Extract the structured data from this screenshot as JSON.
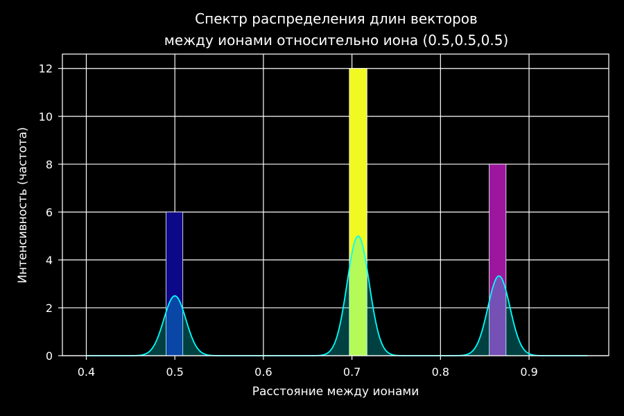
{
  "chart_data": {
    "type": "bar",
    "title_lines": [
      "Спектр распределения длин векторов",
      "между ионами относительно иона (0.5,0.5,0.5)"
    ],
    "xlabel": "Расстояние между ионами",
    "ylabel": "Интенсивность (частота)",
    "xlim": [
      0.373,
      0.99
    ],
    "ylim": [
      0,
      12.6
    ],
    "x_ticks": [
      0.4,
      0.5,
      0.6,
      0.7,
      0.8,
      0.9
    ],
    "y_ticks": [
      0,
      2,
      4,
      6,
      8,
      10,
      12
    ],
    "grid": true,
    "bars": [
      {
        "x_start": 0.49,
        "x_end": 0.509,
        "value": 6,
        "color": "#0d0887"
      },
      {
        "x_start": 0.697,
        "x_end": 0.717,
        "value": 12,
        "color": "#f0f921"
      },
      {
        "x_start": 0.855,
        "x_end": 0.874,
        "value": 8,
        "color": "#9c179e"
      }
    ],
    "kde": {
      "color": "#00ffff",
      "fill_color": "#00ffff",
      "x_range": [
        0.4,
        0.966
      ],
      "peaks": [
        {
          "center": 0.5,
          "height": 2.5,
          "sigma": 0.0125
        },
        {
          "center": 0.707,
          "height": 5.0,
          "sigma": 0.0125
        },
        {
          "center": 0.866,
          "height": 3.33,
          "sigma": 0.0125
        }
      ]
    },
    "background": "#000000",
    "foreground": "#ffffff"
  }
}
